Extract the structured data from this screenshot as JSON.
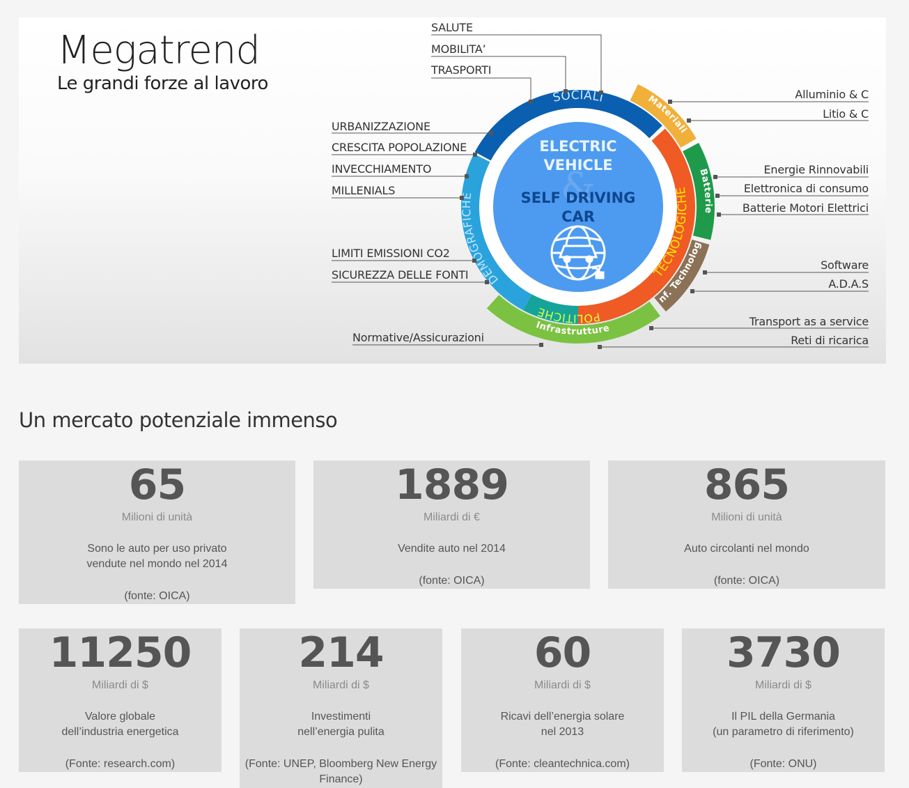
{
  "hero": {
    "title": "Megatrend",
    "subtitle": "Le grandi forze al lavoro",
    "center": {
      "line1": "ELECTRIC",
      "line2": "VEHICLE",
      "amp": "&",
      "line3": "SELF DRIVING",
      "line4": "CAR",
      "icon": "globe-car-plug-icon"
    },
    "segments": {
      "sociali": "SOCIALI",
      "demografiche": "DEMOGRAFICHE",
      "politiche": "POLITICHE",
      "tecnologiche": "TECNOLOGICHE",
      "materiali": "Materiali",
      "batterie": "Batterie",
      "inf_technology": "Inf. Technology",
      "infrastrutture": "Infrastrutture"
    },
    "colors": {
      "sociali": "#0b5fb0",
      "demografiche": "#2aa3dc",
      "politiche": "#16a39a",
      "tecnologiche": "#f05a24",
      "materiali": "#f0b03a",
      "batterie": "#1e9a4a",
      "inf_technology": "#8b7256",
      "infrastrutture": "#7cc242",
      "center": "#4d9bf0"
    },
    "labels_top": [
      "SALUTE",
      "MOBILITA’",
      "TRASPORTI"
    ],
    "labels_left": [
      "URBANIZZAZIONE",
      "CRESCITA POPOLAZIONE",
      "INVECCHIAMENTO",
      "MILLENIALS",
      "LIMITI EMISSIONI CO2",
      "SICUREZZA DELLE FONTI",
      "Normative/Assicurazioni"
    ],
    "labels_right": [
      "Alluminio & C",
      "Litio & C",
      "Energie Rinnovabili",
      "Elettronica di consumo",
      "Batterie Motori Elettrici",
      "Software",
      "A.D.A.S",
      "Transport as a service",
      "Reti di ricarica"
    ]
  },
  "section_title": "Un mercato potenziale immenso",
  "cards_row1": [
    {
      "number": "65",
      "unit": "Milioni di unità",
      "desc": "Sono le auto per uso privato\nvendute nel mondo nel 2014",
      "source": "(fonte: OICA)"
    },
    {
      "number": "1889",
      "unit": "Miliardi di €",
      "desc": "Vendite auto nel 2014",
      "source": "(fonte: OICA)"
    },
    {
      "number": "865",
      "unit": "Milioni di unità",
      "desc": "Auto circolanti nel mondo",
      "source": "(fonte: OICA)"
    }
  ],
  "cards_row2": [
    {
      "number": "11250",
      "unit": "Miliardi di $",
      "desc": "Valore globale\ndell’industria energetica",
      "source": "(Fonte: research.com)"
    },
    {
      "number": "214",
      "unit": "Miliardi di $",
      "desc": "Investimenti\nnell’energia pulita",
      "source": "(Fonte: UNEP, Bloomberg New Energy Finance)"
    },
    {
      "number": "60",
      "unit": "Miliardi di $",
      "desc": "Ricavi dell’energia solare\nnel 2013",
      "source": "(Fonte: cleantechnica.com)"
    },
    {
      "number": "3730",
      "unit": "Miliardi di $",
      "desc": "Il PIL della Germania\n(un parametro di riferimento)",
      "source": "(Fonte: ONU)"
    }
  ]
}
